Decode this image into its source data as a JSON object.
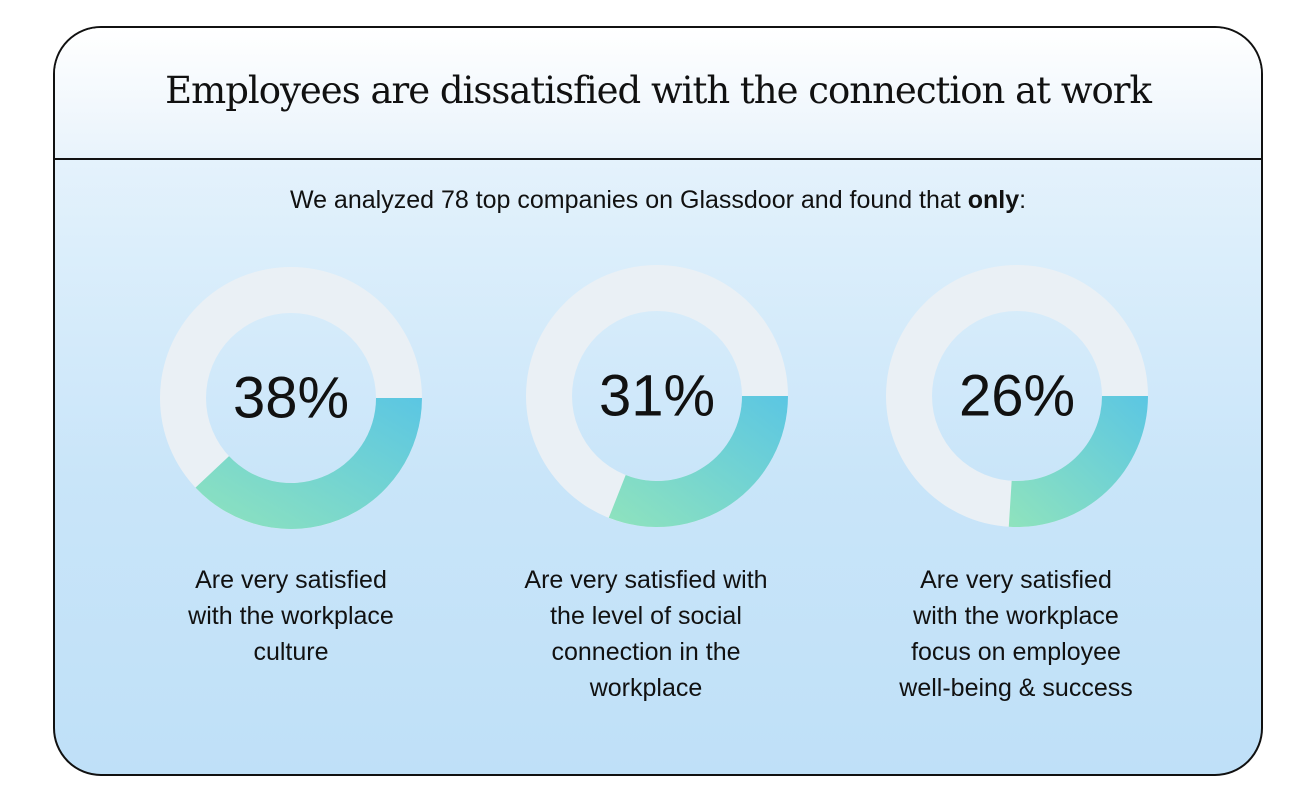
{
  "header": {
    "title": "Employees are dissatisfied with the connection at work"
  },
  "intro": {
    "text_before": "We analyzed 78 top companies on Glassdoor and found that ",
    "emphasis": "only",
    "text_after": ":"
  },
  "colors": {
    "track": "#eaf0f5",
    "gradient_start": "#8fe3bd",
    "gradient_end": "#5bc6e3",
    "card_border": "#111111"
  },
  "chart_data": [
    {
      "type": "pie",
      "variant": "donut",
      "value": 38,
      "label": "38%",
      "caption_lines": [
        "Are very satisfied",
        "with the workplace",
        "culture"
      ]
    },
    {
      "type": "pie",
      "variant": "donut",
      "value": 31,
      "label": "31%",
      "caption_lines": [
        "Are very satisfied with",
        "the level of social",
        "connection in the",
        "workplace"
      ]
    },
    {
      "type": "pie",
      "variant": "donut",
      "value": 26,
      "label": "26%",
      "caption_lines": [
        "Are very satisfied",
        "with the workplace",
        "focus on employee",
        "well-being & success"
      ]
    }
  ]
}
